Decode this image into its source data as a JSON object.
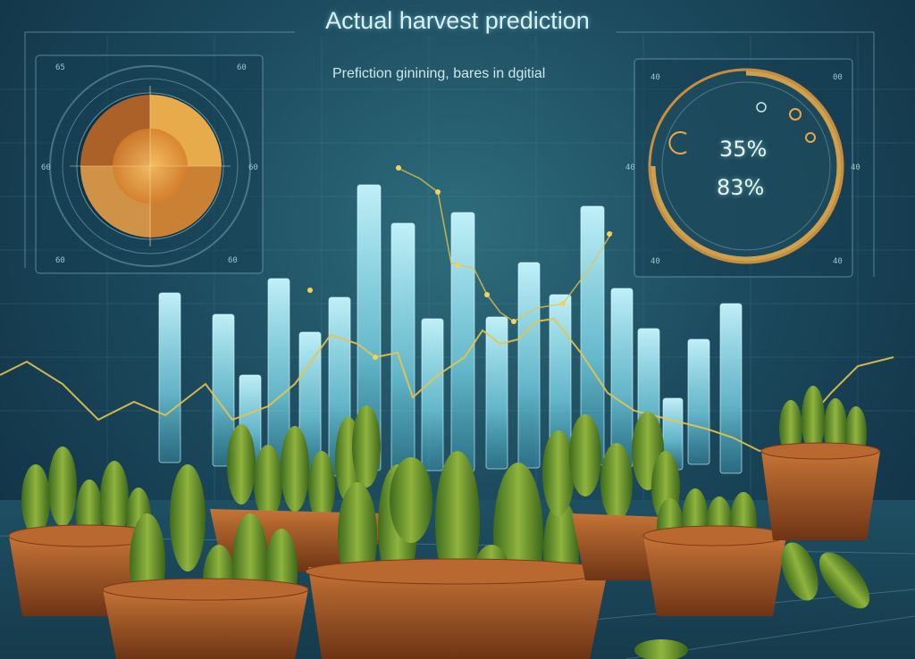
{
  "header": {
    "title": "Actual harvest prediction",
    "subtitle": "Prefiction ginining, bares in dgitial"
  },
  "gauge": {
    "value_top": "35%",
    "value_bottom": "83%"
  },
  "corner_labels": {
    "left_panel": [
      "65",
      "60",
      "60",
      "60",
      "60",
      "60"
    ],
    "right_panel": [
      "40",
      "00",
      "40",
      "40",
      "40",
      "40"
    ]
  },
  "colors": {
    "background": "#1c4a5e",
    "bar_glow": "#8fe6f2",
    "trend_line": "#e8c44a",
    "pie_orange": "#f0a040",
    "gauge_ring": "#e89a3a",
    "pickle_green": "#6f9a2e",
    "basket": "#a85a2a"
  },
  "scene_elements": {
    "bars": 19,
    "baskets": 6
  }
}
